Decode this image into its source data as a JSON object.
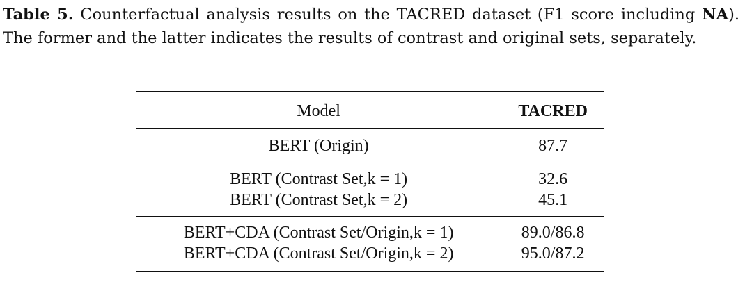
{
  "caption": {
    "label": "Table 5.",
    "text_1": " Counterfactual analysis results on the TACRED dataset (F1 score including ",
    "na": "NA",
    "text_2": "). The former and the latter indicates the results of contrast and original sets, separately."
  },
  "table": {
    "headers": {
      "model": "Model",
      "metric": "TACRED"
    },
    "rows": [
      {
        "model": "BERT (Origin)",
        "score": "87.7"
      },
      {
        "model": "BERT (Contrast Set,k = 1)",
        "score": "32.6"
      },
      {
        "model": "BERT (Contrast Set,k = 2)",
        "score": "45.1"
      },
      {
        "model": "BERT+CDA (Contrast Set/Origin,k = 1)",
        "score": "89.0/86.8"
      },
      {
        "model": "BERT+CDA (Contrast Set/Origin,k = 2)",
        "score": "95.0/87.2"
      }
    ]
  }
}
